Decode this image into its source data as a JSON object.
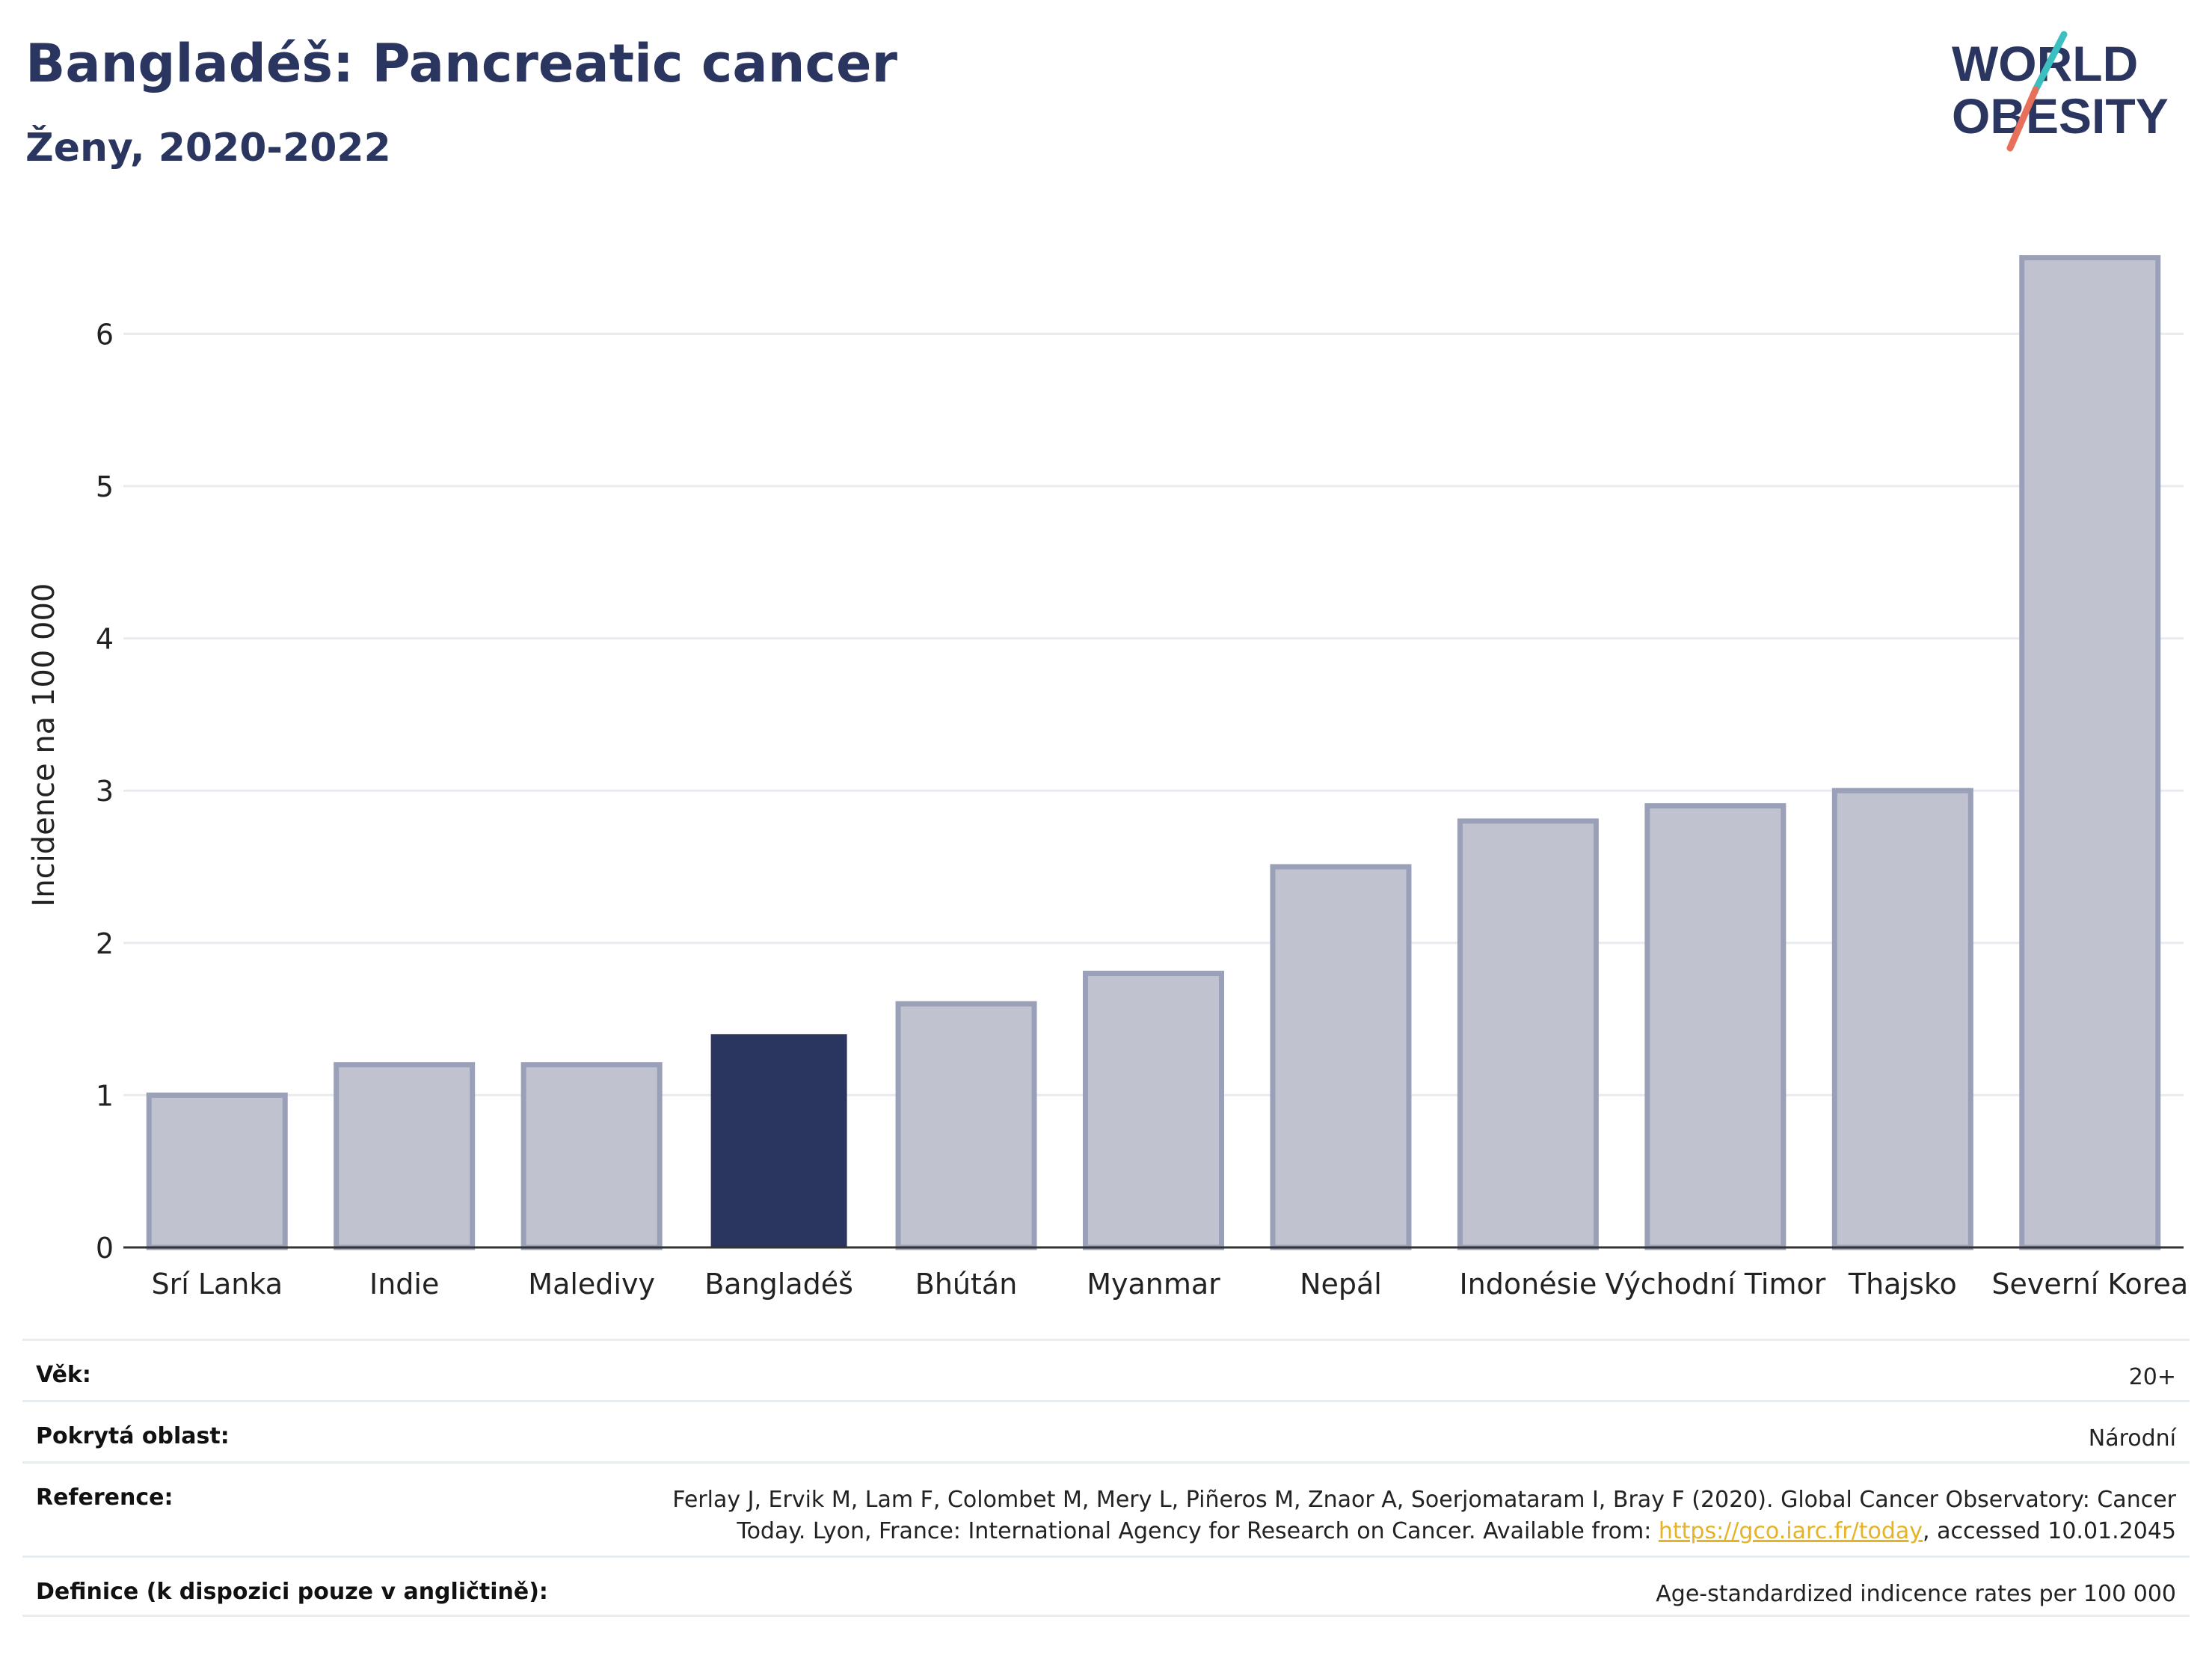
{
  "header": {
    "title": "Bangladéš: Pancreatic cancer",
    "subtitle": "Ženy, 2020-2022"
  },
  "logo": {
    "line1": "WORLD",
    "line2": "OBESITY",
    "colors": {
      "text": "#2a3560",
      "slash_teal": "#3bbfc0",
      "slash_coral": "#e8705a"
    }
  },
  "chart_data": {
    "type": "bar",
    "ylabel": "Incidence na 100 000",
    "xlabel": "",
    "ylim": [
      0,
      6.6
    ],
    "yticks": [
      0,
      1,
      2,
      3,
      4,
      5,
      6
    ],
    "grid": true,
    "categories": [
      "Srí Lanka",
      "Indie",
      "Maledivy",
      "Bangladéš",
      "Bhútán",
      "Myanmar",
      "Nepál",
      "Indonésie",
      "Východní Timor",
      "Thajsko",
      "Severní Korea"
    ],
    "values": [
      1.0,
      1.2,
      1.2,
      1.4,
      1.6,
      1.8,
      2.5,
      2.8,
      2.9,
      3.0,
      6.5
    ],
    "highlight": "Bangladéš",
    "colors": {
      "bar": "#c0c3cf",
      "bar_edge": "#9aa0b8",
      "highlight": "#2a3560",
      "grid": "#e8ebef",
      "axis": "#333333"
    }
  },
  "meta": {
    "age_label": "Věk:",
    "age_value": "20+",
    "area_label": "Pokrytá oblast:",
    "area_value": "Národní",
    "ref_label": "Reference:",
    "ref_text_1": "Ferlay J, Ervik M, Lam F, Colombet M, Mery L, Piñeros M, Znaor A, Soerjomataram I, Bray F (2020). Global Cancer Observatory: Cancer Today. Lyon, France: International Agency for Research on Cancer. Available from: ",
    "ref_link": "https://gco.iarc.fr/today",
    "ref_text_2": ", accessed 10.01.2045",
    "def_label": "Definice (k dispozici pouze v angličtině):",
    "def_value": "Age-standardized indicence rates per 100 000"
  }
}
